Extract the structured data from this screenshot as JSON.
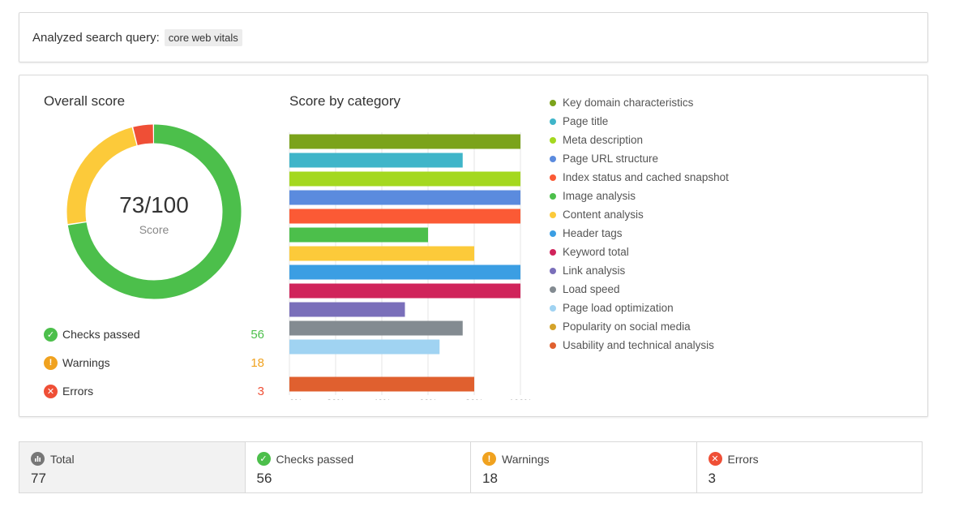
{
  "query": {
    "label": "Analyzed search query:",
    "value": "core web vitals"
  },
  "overall": {
    "title": "Overall score",
    "score_text": "73/100",
    "score_caption": "Score",
    "segments": [
      {
        "name": "passed",
        "value": 56,
        "color": "#4cbf4b"
      },
      {
        "name": "warnings",
        "value": 18,
        "color": "#fcca3a"
      },
      {
        "name": "errors",
        "value": 3,
        "color": "#ef4f36"
      }
    ]
  },
  "stats": [
    {
      "label": "Checks passed",
      "count": "56",
      "color": "#4cbf4b",
      "icon": "check-circle-icon",
      "glyph": "✓"
    },
    {
      "label": "Warnings",
      "count": "18",
      "color": "#f0a21f",
      "icon": "warning-circle-icon",
      "glyph": "!"
    },
    {
      "label": "Errors",
      "count": "3",
      "color": "#ef4f36",
      "icon": "error-circle-icon",
      "glyph": "✕"
    }
  ],
  "category": {
    "title": "Score by category"
  },
  "chart_data": {
    "type": "bar",
    "orientation": "horizontal",
    "title": "Score by category",
    "categories": [
      "Key domain characteristics",
      "Page title",
      "Meta description",
      "Page URL structure",
      "Index status and cached snapshot",
      "Image analysis",
      "Content analysis",
      "Header tags",
      "Keyword total",
      "Link analysis",
      "Load speed",
      "Page load optimization",
      "Popularity on social media",
      "Usability and technical analysis"
    ],
    "values": [
      100,
      75,
      100,
      100,
      100,
      60,
      80,
      100,
      100,
      50,
      75,
      65,
      0,
      80
    ],
    "colors": [
      "#7ba31b",
      "#3fb5c9",
      "#a4d81f",
      "#5b8bde",
      "#fb5a35",
      "#4cbf4b",
      "#fcca3a",
      "#3b9ee3",
      "#d0245b",
      "#7a6fba",
      "#838b91",
      "#a0d3f2",
      "#d4a32a",
      "#e0602f"
    ],
    "x_ticks": [
      "0%",
      "20%",
      "40%",
      "60%",
      "80%",
      "100%"
    ],
    "xlim": [
      0,
      100
    ],
    "grid": true,
    "legend": "right"
  },
  "summary": [
    {
      "label": "Total",
      "value": "77",
      "color": "#777777",
      "icon": "bar-chart-icon",
      "glyph": "▮"
    },
    {
      "label": "Checks passed",
      "value": "56",
      "color": "#4cbf4b",
      "icon": "check-circle-icon",
      "glyph": "✓"
    },
    {
      "label": "Warnings",
      "value": "18",
      "color": "#f0a21f",
      "icon": "warning-circle-icon",
      "glyph": "!"
    },
    {
      "label": "Errors",
      "value": "3",
      "color": "#ef4f36",
      "icon": "error-circle-icon",
      "glyph": "✕"
    }
  ]
}
